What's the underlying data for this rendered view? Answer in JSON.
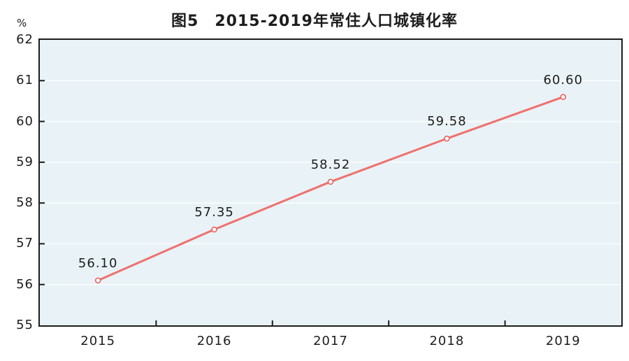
{
  "chart_data": {
    "type": "line",
    "title": "图5　2015-2019年常住人口城镇化率",
    "unit_label": "%",
    "categories": [
      "2015",
      "2016",
      "2017",
      "2018",
      "2019"
    ],
    "series": [
      {
        "name": "常住人口城镇化率",
        "values": [
          56.1,
          57.35,
          58.52,
          59.58,
          60.6
        ]
      }
    ],
    "point_labels": [
      "56.10",
      "57.35",
      "58.52",
      "59.58",
      "60.60"
    ],
    "ylim": [
      55,
      62
    ],
    "yticks": [
      55,
      56,
      57,
      58,
      59,
      60,
      61,
      62
    ],
    "grid": "horizontal",
    "legend_position": "none",
    "colors": {
      "line": "#ee7170",
      "marker_fill": "#ffffff",
      "marker_stroke": "#e96360",
      "plot_background": "#e9f2f6",
      "gridline": "#fbfdfe",
      "axis": "#1d1d1d",
      "text": "#1d1d1d"
    }
  }
}
